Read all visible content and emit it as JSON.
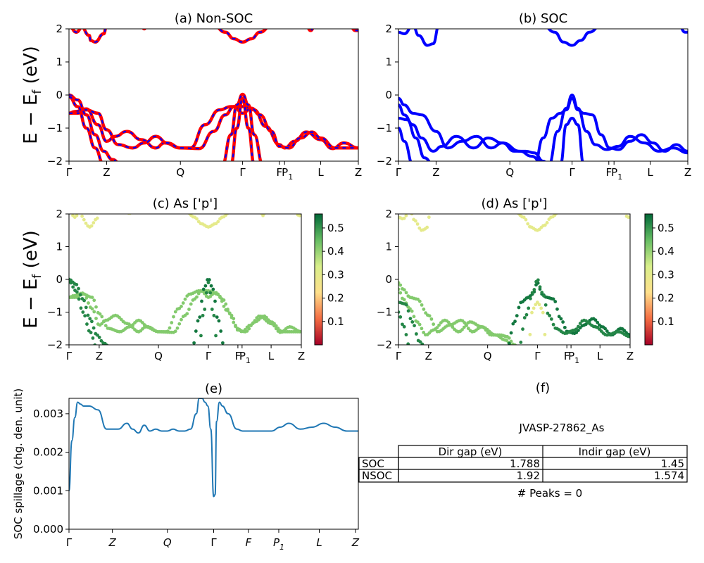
{
  "figure": {
    "energy_ylabel_main": "E − E",
    "energy_ylabel_sub": "f",
    "energy_ylabel_unit": " (eV)"
  },
  "chart_data": [
    {
      "id": "a",
      "type": "line",
      "title": "(a) Non-SOC",
      "ylabel": "E − E_f (eV)",
      "ylim": [
        -2,
        2
      ],
      "yticks": [
        "2",
        "1",
        "0",
        "−1",
        "−2"
      ],
      "kpath": [
        "Γ",
        "Z",
        "Q",
        "Γ",
        "F",
        "P1",
        "L",
        "Z"
      ],
      "kpos": [
        0.0,
        0.13,
        0.385,
        0.6,
        0.727,
        0.745,
        0.87,
        1.0
      ],
      "series_colors": [
        "#0000ff",
        "#ff0000"
      ],
      "bands": [
        {
          "x": [
            0,
            0.02,
            0.06,
            0.1,
            0.13,
            0.16,
            0.2,
            0.25,
            0.3,
            0.33,
            0.385,
            0.42,
            0.47,
            0.52,
            0.56,
            0.6,
            0.64,
            0.68,
            0.727,
            0.745,
            0.78,
            0.82,
            0.87,
            0.91,
            0.95,
            1.0
          ],
          "y": [
            -0.55,
            -0.5,
            -0.42,
            -0.9,
            -1.4,
            -1.25,
            -1.1,
            -1.35,
            -1.6,
            -1.45,
            -1.6,
            -1.6,
            -0.9,
            -0.45,
            -0.35,
            -0.35,
            -0.45,
            -0.95,
            -1.5,
            -1.6,
            -1.4,
            -1.12,
            -1.35,
            -1.62,
            -1.45,
            -1.6
          ]
        },
        {
          "x": [
            0,
            0.03,
            0.06,
            0.1,
            0.13,
            0.17,
            0.22,
            0.26,
            0.3,
            0.34,
            0.385,
            0.45,
            0.5,
            0.54,
            0.57,
            0.6,
            0.63,
            0.66,
            0.7,
            0.727,
            0.76,
            0.8,
            0.84,
            0.87,
            0.92,
            0.96,
            1.0
          ],
          "y": [
            -0.55,
            -0.55,
            -0.45,
            -0.55,
            -1.05,
            -1.5,
            -1.6,
            -1.45,
            -1.25,
            -1.45,
            -1.6,
            -1.62,
            -1.1,
            -0.6,
            -0.35,
            -0.55,
            -0.4,
            -0.6,
            -1.1,
            -1.55,
            -1.6,
            -1.3,
            -1.12,
            -1.3,
            -1.6,
            -1.6,
            -1.6
          ]
        },
        {
          "x": [
            0,
            0.03,
            0.06,
            0.09,
            0.12,
            0.15,
            0.18
          ],
          "y": [
            0,
            -0.15,
            -0.6,
            -1.2,
            -1.7,
            -1.95,
            -2.1
          ]
        },
        {
          "x": [
            0,
            0.03,
            0.06,
            0.09,
            0.12
          ],
          "y": [
            -0.05,
            -0.35,
            -1.0,
            -1.6,
            -2.1
          ]
        },
        {
          "x": [
            0.53,
            0.56,
            0.58,
            0.6,
            0.62,
            0.64,
            0.67
          ],
          "y": [
            -2.1,
            -1.2,
            -0.3,
            0.02,
            -0.3,
            -1.2,
            -2.1
          ]
        },
        {
          "x": [
            0.56,
            0.58,
            0.6,
            0.62,
            0.64
          ],
          "y": [
            -2.1,
            -1.0,
            -0.1,
            -1.0,
            -2.1
          ]
        },
        {
          "x": [
            0.0,
            0.025,
            0.05
          ],
          "y": [
            2.1,
            1.9,
            2.1
          ]
        },
        {
          "x": [
            0.04,
            0.07,
            0.075,
            0.09,
            0.12,
            0.13
          ],
          "y": [
            2.1,
            1.8,
            1.65,
            1.6,
            1.85,
            2.1
          ]
        },
        {
          "x": [
            0.5,
            0.54,
            0.57,
            0.6,
            0.63,
            0.66,
            0.7
          ],
          "y": [
            2.1,
            1.9,
            1.7,
            1.6,
            1.7,
            1.9,
            2.1
          ]
        },
        {
          "x": [
            0.25,
            0.26,
            0.27
          ],
          "y": [
            2.1,
            2.0,
            2.1
          ]
        },
        {
          "x": [
            0.82,
            0.835,
            0.85
          ],
          "y": [
            2.1,
            1.95,
            2.1
          ]
        },
        {
          "x": [
            0.97,
            0.99,
            1.0
          ],
          "y": [
            2.1,
            1.95,
            1.95
          ]
        }
      ]
    },
    {
      "id": "b",
      "type": "line",
      "title": "(b) SOC",
      "ylim": [
        -2,
        2
      ],
      "yticks": [
        "2",
        "1",
        "0",
        "−1",
        "−2"
      ],
      "kpath": [
        "Γ",
        "Z",
        "Q",
        "Γ",
        "F",
        "P1",
        "L",
        "Z"
      ],
      "kpos": [
        0.0,
        0.13,
        0.385,
        0.6,
        0.727,
        0.745,
        0.87,
        1.0
      ],
      "series_colors": [
        "#0000ff"
      ],
      "bands": [
        {
          "x": [
            0,
            0.02,
            0.05,
            0.08,
            0.13,
            0.17,
            0.22,
            0.27,
            0.32,
            0.36,
            0.4,
            0.44,
            0.47,
            0.5,
            0.52
          ],
          "y": [
            -0.1,
            -0.3,
            -0.55,
            -0.6,
            -1.1,
            -1.6,
            -1.4,
            -1.25,
            -1.6,
            -1.45,
            -1.7,
            -1.7,
            -1.75,
            -2.0,
            -2.1
          ]
        },
        {
          "x": [
            0,
            0.02,
            0.05,
            0.08,
            0.12,
            0.15,
            0.2,
            0.26,
            0.31,
            0.36,
            0.42,
            0.46,
            0.5
          ],
          "y": [
            -0.3,
            -0.6,
            -0.9,
            -1.3,
            -1.7,
            -1.55,
            -1.25,
            -1.6,
            -1.3,
            -1.45,
            -1.7,
            -1.85,
            -2.1
          ]
        },
        {
          "x": [
            0,
            0.03,
            0.06,
            0.09,
            0.12
          ],
          "y": [
            -0.7,
            -0.75,
            -1.3,
            -1.9,
            -2.1
          ]
        },
        {
          "x": [
            0,
            0.02,
            0.05
          ],
          "y": [
            -1.0,
            -1.4,
            -2.1
          ]
        },
        {
          "x": [
            0.47,
            0.5,
            0.53,
            0.56,
            0.58,
            0.6,
            0.62,
            0.64,
            0.67,
            0.7,
            0.73,
            0.76,
            0.8,
            0.84,
            0.88,
            0.92,
            0.96,
            1.0
          ],
          "y": [
            -2.1,
            -1.3,
            -0.7,
            -0.55,
            -0.45,
            -0.1,
            -0.45,
            -0.55,
            -0.6,
            -1.2,
            -1.6,
            -1.65,
            -1.4,
            -1.2,
            -1.45,
            -1.7,
            -1.5,
            -1.7
          ]
        },
        {
          "x": [
            0.52,
            0.55,
            0.58,
            0.6,
            0.62,
            0.65,
            0.68,
            0.72,
            0.76,
            0.8,
            0.85,
            0.9,
            0.95,
            1.0
          ],
          "y": [
            -2.1,
            -1.1,
            -0.4,
            0.0,
            -0.4,
            -1.1,
            -1.5,
            -1.65,
            -1.55,
            -1.25,
            -1.45,
            -1.7,
            -1.6,
            -1.75
          ]
        },
        {
          "x": [
            0.56,
            0.58,
            0.6,
            0.62,
            0.64
          ],
          "y": [
            -2.1,
            -0.9,
            -0.7,
            -0.9,
            -2.1
          ]
        },
        {
          "x": [
            0.0,
            0.02,
            0.05,
            0.07,
            0.1,
            0.12,
            0.14
          ],
          "y": [
            1.9,
            1.85,
            2.1,
            1.8,
            1.5,
            1.55,
            2.1
          ]
        },
        {
          "x": [
            0.5,
            0.54,
            0.57,
            0.6,
            0.63,
            0.66,
            0.7
          ],
          "y": [
            2.1,
            1.9,
            1.6,
            1.5,
            1.65,
            1.9,
            2.1
          ]
        },
        {
          "x": [
            0.97,
            0.99,
            1.0
          ],
          "y": [
            2.1,
            1.9,
            1.9
          ]
        }
      ]
    },
    {
      "id": "c",
      "type": "scatter",
      "title": "(c)  As ['p']",
      "ylim": [
        -2,
        2
      ],
      "yticks": [
        "2",
        "1",
        "0",
        "−1",
        "−2"
      ],
      "kpath": [
        "Γ",
        "Z",
        "Q",
        "Γ",
        "F",
        "P1",
        "L",
        "Z"
      ],
      "kpos": [
        0.0,
        0.13,
        0.385,
        0.6,
        0.727,
        0.745,
        0.87,
        1.0
      ],
      "colorbar": {
        "min": 0.0,
        "max": 0.56,
        "ticks": [
          "0.5",
          "0.4",
          "0.3",
          "0.2",
          "0.1"
        ],
        "tick_values": [
          0.5,
          0.4,
          0.3,
          0.2,
          0.1
        ],
        "colors": [
          "#a50026",
          "#f46d43",
          "#fee08b",
          "#d9ef8b",
          "#66bd63",
          "#006837"
        ]
      },
      "point_value_bands": [
        0.42,
        0.42,
        0.52,
        0.52,
        0.52,
        0.5,
        0.3
      ]
    },
    {
      "id": "d",
      "type": "scatter",
      "title": "(d) As ['p']",
      "ylim": [
        -2,
        2
      ],
      "yticks": [
        "2",
        "1",
        "0",
        "−1",
        "−2"
      ],
      "kpath": [
        "Γ",
        "Z",
        "Q",
        "Γ",
        "F",
        "P1",
        "L",
        "Z"
      ],
      "kpos": [
        0.0,
        0.13,
        0.385,
        0.6,
        0.727,
        0.745,
        0.87,
        1.0
      ],
      "colorbar": {
        "min": 0.0,
        "max": 0.56,
        "ticks": [
          "0.5",
          "0.4",
          "0.3",
          "0.2",
          "0.1"
        ],
        "tick_values": [
          0.5,
          0.4,
          0.3,
          0.2,
          0.1
        ],
        "colors": [
          "#a50026",
          "#f46d43",
          "#fee08b",
          "#d9ef8b",
          "#66bd63",
          "#006837"
        ]
      }
    },
    {
      "id": "e",
      "type": "line",
      "title": "(e)",
      "ylabel": "SOC spillage (chg. den. unit)",
      "ylim": [
        0,
        0.0034
      ],
      "yticks": [
        "0.003",
        "0.002",
        "0.001",
        "0.000"
      ],
      "ytick_values": [
        0.003,
        0.002,
        0.001,
        0.0
      ],
      "kpath": [
        "Γ",
        "Z",
        "Q",
        "Γ",
        "F",
        "P1",
        "L",
        "Z"
      ],
      "kpos": [
        0.0,
        0.15,
        0.34,
        0.5,
        0.62,
        0.725,
        0.865,
        0.99
      ],
      "series_color": "#1f77b4",
      "x": [
        0.0,
        0.01,
        0.02,
        0.03,
        0.04,
        0.05,
        0.07,
        0.1,
        0.13,
        0.15,
        0.17,
        0.2,
        0.22,
        0.24,
        0.26,
        0.28,
        0.3,
        0.32,
        0.34,
        0.36,
        0.38,
        0.4,
        0.42,
        0.44,
        0.45,
        0.46,
        0.47,
        0.48,
        0.49,
        0.5,
        0.505,
        0.51,
        0.52,
        0.53,
        0.55,
        0.58,
        0.6,
        0.63,
        0.66,
        0.7,
        0.73,
        0.76,
        0.8,
        0.84,
        0.88,
        0.92,
        0.96,
        1.0
      ],
      "y": [
        0.001,
        0.0023,
        0.0029,
        0.0033,
        0.00325,
        0.0032,
        0.0032,
        0.0031,
        0.0026,
        0.0026,
        0.0026,
        0.00275,
        0.0026,
        0.0025,
        0.0027,
        0.00255,
        0.0026,
        0.00255,
        0.00255,
        0.0026,
        0.00255,
        0.00255,
        0.0026,
        0.003,
        0.0034,
        0.0034,
        0.0033,
        0.0032,
        0.0026,
        0.00085,
        0.0009,
        0.0028,
        0.0033,
        0.0032,
        0.003,
        0.0026,
        0.00255,
        0.00255,
        0.00255,
        0.00255,
        0.00265,
        0.00275,
        0.0026,
        0.00265,
        0.00275,
        0.00265,
        0.00255,
        0.00255
      ]
    },
    {
      "id": "f",
      "type": "table",
      "title": "(f)",
      "subtitle": "JVASP-27862_As",
      "columns": [
        "Dir gap (eV)",
        "Indir gap (eV)"
      ],
      "rows": [
        {
          "label": "SOC",
          "values": [
            "1.788",
            "1.45"
          ]
        },
        {
          "label": "NSOC",
          "values": [
            "1.92",
            "1.574"
          ]
        }
      ],
      "footer": "# Peaks = 0"
    }
  ]
}
